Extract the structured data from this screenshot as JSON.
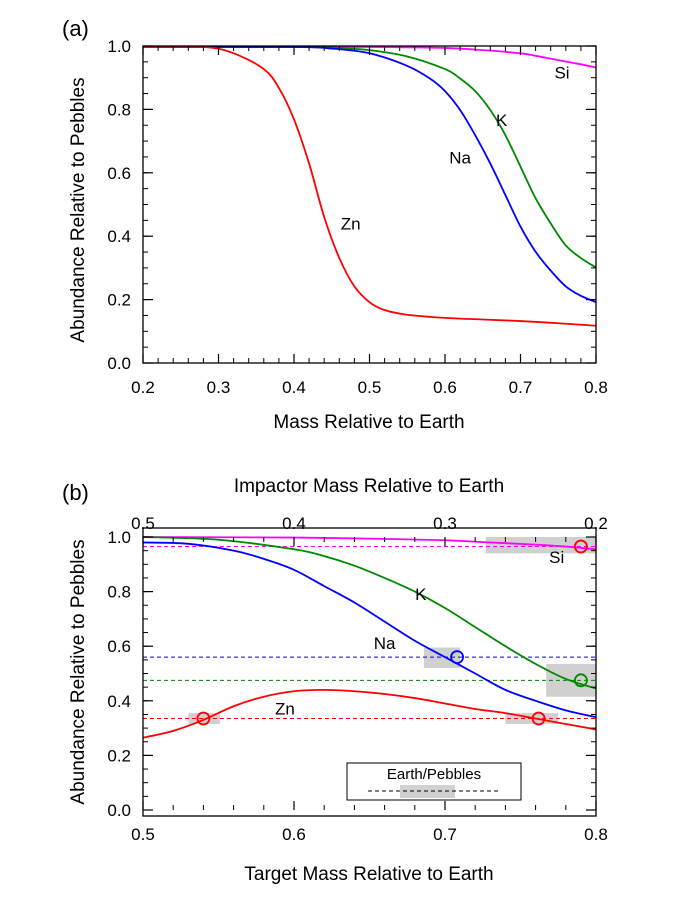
{
  "chart_data": [
    {
      "panel_label": "(a)",
      "type": "line",
      "xlabel": "Mass Relative to Earth",
      "ylabel": "Abundance Relative to Pebbles",
      "xlim": [
        0.2,
        0.8
      ],
      "ylim": [
        0.0,
        1.0
      ],
      "xticks": [
        "0.2",
        "0.3",
        "0.4",
        "0.5",
        "0.6",
        "0.7",
        "0.8"
      ],
      "yticks": [
        "0.0",
        "0.2",
        "0.4",
        "0.6",
        "0.8",
        "1.0"
      ],
      "series": [
        {
          "name": "Si",
          "color": "#ff00ff",
          "x": [
            0.2,
            0.5,
            0.6,
            0.65,
            0.7,
            0.72,
            0.74,
            0.76,
            0.78,
            0.8
          ],
          "y": [
            1.0,
            1.0,
            0.997,
            0.99,
            0.98,
            0.972,
            0.963,
            0.954,
            0.945,
            0.935
          ]
        },
        {
          "name": "K",
          "color": "#008800",
          "x": [
            0.2,
            0.4,
            0.45,
            0.5,
            0.55,
            0.6,
            0.62,
            0.64,
            0.66,
            0.68,
            0.7,
            0.72,
            0.74,
            0.76,
            0.78,
            0.8
          ],
          "y": [
            1.0,
            1.0,
            0.998,
            0.99,
            0.97,
            0.93,
            0.9,
            0.86,
            0.8,
            0.72,
            0.62,
            0.52,
            0.44,
            0.37,
            0.33,
            0.3
          ]
        },
        {
          "name": "Na",
          "color": "#0000ff",
          "x": [
            0.2,
            0.4,
            0.45,
            0.5,
            0.55,
            0.58,
            0.6,
            0.62,
            0.64,
            0.66,
            0.68,
            0.7,
            0.72,
            0.74,
            0.76,
            0.78,
            0.8
          ],
          "y": [
            1.0,
            1.0,
            0.995,
            0.98,
            0.94,
            0.9,
            0.86,
            0.8,
            0.72,
            0.63,
            0.53,
            0.43,
            0.35,
            0.29,
            0.24,
            0.21,
            0.19
          ]
        },
        {
          "name": "Zn",
          "color": "#ff0000",
          "x": [
            0.2,
            0.28,
            0.32,
            0.36,
            0.38,
            0.4,
            0.42,
            0.44,
            0.46,
            0.48,
            0.5,
            0.52,
            0.55,
            0.6,
            0.65,
            0.7,
            0.75,
            0.8
          ],
          "y": [
            1.0,
            1.0,
            0.98,
            0.93,
            0.87,
            0.77,
            0.63,
            0.46,
            0.33,
            0.24,
            0.19,
            0.165,
            0.15,
            0.14,
            0.135,
            0.13,
            0.123,
            0.115
          ]
        }
      ],
      "curve_labels": [
        {
          "text": "Si",
          "x": 0.755,
          "y": 0.9
        },
        {
          "text": "K",
          "x": 0.675,
          "y": 0.75
        },
        {
          "text": "Na",
          "x": 0.62,
          "y": 0.63
        },
        {
          "text": "Zn",
          "x": 0.475,
          "y": 0.42
        }
      ]
    },
    {
      "panel_label": "(b)",
      "type": "line",
      "xlabel": "Target Mass Relative to Earth",
      "x2label": "Impactor Mass Relative to Earth",
      "ylabel": "Abundance Relative to Pebbles",
      "xlim": [
        0.5,
        0.8
      ],
      "ylim": [
        0.0,
        1.0
      ],
      "xticks": [
        "0.5",
        "0.6",
        "0.7",
        "0.8"
      ],
      "x2ticks": [
        {
          "label": "0.5",
          "x": 0.5
        },
        {
          "label": "0.4",
          "x": 0.6
        },
        {
          "label": "0.3",
          "x": 0.7
        },
        {
          "label": "0.2",
          "x": 0.8
        }
      ],
      "yticks": [
        "0.0",
        "0.2",
        "0.4",
        "0.6",
        "0.8",
        "1.0"
      ],
      "series": [
        {
          "name": "Si",
          "color": "#ff00ff",
          "x": [
            0.5,
            0.6,
            0.65,
            0.7,
            0.73,
            0.76,
            0.78,
            0.8
          ],
          "y": [
            1.0,
            0.998,
            0.994,
            0.988,
            0.98,
            0.972,
            0.965,
            0.955
          ]
        },
        {
          "name": "K",
          "color": "#008800",
          "x": [
            0.5,
            0.55,
            0.6,
            0.62,
            0.64,
            0.66,
            0.68,
            0.7,
            0.72,
            0.74,
            0.76,
            0.78,
            0.8
          ],
          "y": [
            1.0,
            0.99,
            0.955,
            0.93,
            0.895,
            0.85,
            0.8,
            0.74,
            0.67,
            0.6,
            0.535,
            0.48,
            0.445
          ]
        },
        {
          "name": "Na",
          "color": "#0000ff",
          "x": [
            0.5,
            0.53,
            0.56,
            0.58,
            0.6,
            0.62,
            0.64,
            0.66,
            0.68,
            0.7,
            0.72,
            0.74,
            0.76,
            0.78,
            0.8
          ],
          "y": [
            0.98,
            0.975,
            0.95,
            0.92,
            0.88,
            0.82,
            0.76,
            0.69,
            0.62,
            0.56,
            0.5,
            0.44,
            0.4,
            0.365,
            0.34
          ]
        },
        {
          "name": "Zn",
          "color": "#ff0000",
          "x": [
            0.5,
            0.52,
            0.54,
            0.56,
            0.58,
            0.6,
            0.62,
            0.64,
            0.66,
            0.68,
            0.7,
            0.72,
            0.74,
            0.76,
            0.78,
            0.8
          ],
          "y": [
            0.265,
            0.29,
            0.33,
            0.38,
            0.415,
            0.435,
            0.44,
            0.435,
            0.425,
            0.41,
            0.39,
            0.37,
            0.355,
            0.335,
            0.315,
            0.295
          ]
        }
      ],
      "earth_lines": [
        {
          "element": "Si",
          "color": "#ff00ff",
          "y": 0.965
        },
        {
          "element": "Na",
          "color": "#0000ff",
          "y": 0.56
        },
        {
          "element": "K",
          "color": "#008800",
          "y": 0.475
        },
        {
          "element": "Zn",
          "color": "#ff0000",
          "y": 0.335
        }
      ],
      "matches": [
        {
          "element": "Si",
          "color": "#ff0000",
          "x": 0.79,
          "y": 0.965
        },
        {
          "element": "Na",
          "color": "#0000ff",
          "x": 0.708,
          "y": 0.56
        },
        {
          "element": "K",
          "color": "#008800",
          "x": 0.79,
          "y": 0.475
        },
        {
          "element": "Zn",
          "color": "#ff0000",
          "x": 0.54,
          "y": 0.335
        },
        {
          "element": "Zn",
          "color": "#ff0000",
          "x": 0.762,
          "y": 0.335
        }
      ],
      "uncertainty_boxes": [
        {
          "element": "Si",
          "x0": 0.727,
          "x1": 0.8,
          "y0": 0.94,
          "y1": 1.0
        },
        {
          "element": "Na",
          "x0": 0.686,
          "x1": 0.71,
          "y0": 0.52,
          "y1": 0.595
        },
        {
          "element": "K",
          "x0": 0.767,
          "x1": 0.8,
          "y0": 0.415,
          "y1": 0.535
        },
        {
          "element": "Zn",
          "x0": 0.53,
          "x1": 0.551,
          "y0": 0.315,
          "y1": 0.355
        },
        {
          "element": "Zn",
          "x0": 0.74,
          "x1": 0.775,
          "y0": 0.315,
          "y1": 0.355
        }
      ],
      "curve_labels": [
        {
          "text": "Si",
          "x": 0.774,
          "y": 0.905
        },
        {
          "text": "K",
          "x": 0.684,
          "y": 0.77
        },
        {
          "text": "Na",
          "x": 0.66,
          "y": 0.59
        },
        {
          "text": "Zn",
          "x": 0.594,
          "y": 0.35
        }
      ],
      "legend": {
        "title": "Earth/Pebbles",
        "position": "bottom-center"
      }
    }
  ]
}
